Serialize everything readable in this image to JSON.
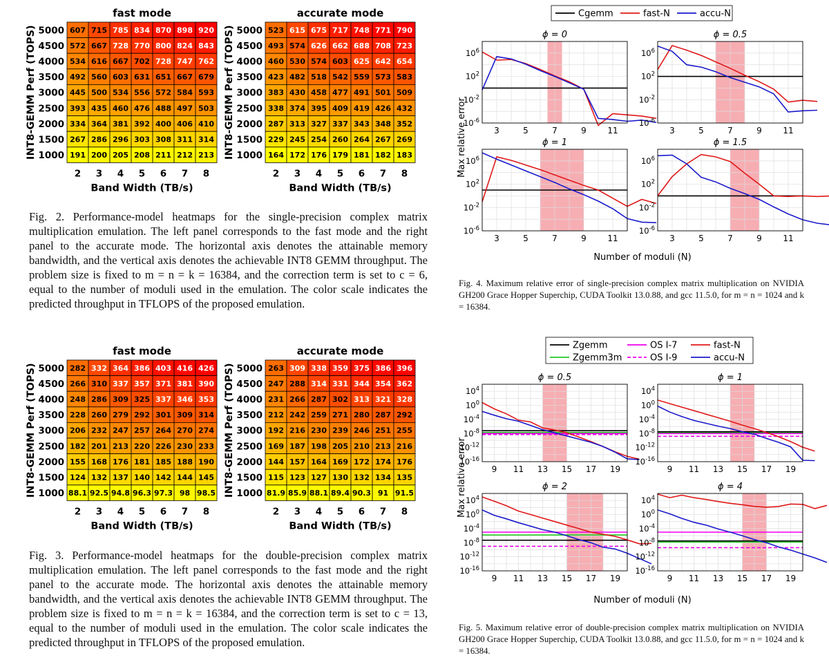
{
  "heatmaps": {
    "x_ticks": [
      "2",
      "3",
      "4",
      "5",
      "6",
      "7",
      "8"
    ],
    "y_ticks": [
      "5000",
      "4500",
      "4000",
      "3500",
      "3000",
      "2500",
      "2000",
      "1500",
      "1000"
    ],
    "xlabel": "Band Width (TB/s)",
    "ylabel": "INT8-GEMM Perf (TOPS)"
  },
  "chart_data": [
    {
      "type": "heatmap",
      "title": "fast mode",
      "x": [
        "2",
        "3",
        "4",
        "5",
        "6",
        "7",
        "8"
      ],
      "y": [
        "5000",
        "4500",
        "4000",
        "3500",
        "3000",
        "2500",
        "2000",
        "1500",
        "1000"
      ],
      "values": [
        [
          "607",
          "715",
          "785",
          "834",
          "870",
          "898",
          "920"
        ],
        [
          "572",
          "667",
          "728",
          "770",
          "800",
          "824",
          "843"
        ],
        [
          "534",
          "616",
          "667",
          "702",
          "728",
          "747",
          "762"
        ],
        [
          "492",
          "560",
          "603",
          "631",
          "651",
          "667",
          "679"
        ],
        [
          "445",
          "500",
          "534",
          "556",
          "572",
          "584",
          "593"
        ],
        [
          "393",
          "435",
          "460",
          "476",
          "488",
          "497",
          "503"
        ],
        [
          "334",
          "364",
          "381",
          "392",
          "400",
          "406",
          "410"
        ],
        [
          "267",
          "286",
          "296",
          "303",
          "308",
          "311",
          "314"
        ],
        [
          "191",
          "200",
          "205",
          "208",
          "211",
          "212",
          "213"
        ]
      ],
      "min": 191,
      "max": 920
    },
    {
      "type": "heatmap",
      "title": "accurate mode",
      "x": [
        "2",
        "3",
        "4",
        "5",
        "6",
        "7",
        "8"
      ],
      "y": [
        "5000",
        "4500",
        "4000",
        "3500",
        "3000",
        "2500",
        "2000",
        "1500",
        "1000"
      ],
      "values": [
        [
          "523",
          "615",
          "675",
          "717",
          "748",
          "771",
          "790"
        ],
        [
          "493",
          "574",
          "626",
          "662",
          "688",
          "708",
          "723"
        ],
        [
          "460",
          "530",
          "574",
          "603",
          "625",
          "642",
          "654"
        ],
        [
          "423",
          "482",
          "518",
          "542",
          "559",
          "573",
          "583"
        ],
        [
          "383",
          "430",
          "458",
          "477",
          "491",
          "501",
          "509"
        ],
        [
          "338",
          "374",
          "395",
          "409",
          "419",
          "426",
          "432"
        ],
        [
          "287",
          "313",
          "327",
          "337",
          "343",
          "348",
          "352"
        ],
        [
          "229",
          "245",
          "254",
          "260",
          "264",
          "267",
          "269"
        ],
        [
          "164",
          "172",
          "176",
          "179",
          "181",
          "182",
          "183"
        ]
      ],
      "min": 164,
      "max": 790
    },
    {
      "type": "heatmap",
      "title": "fast mode",
      "x": [
        "2",
        "3",
        "4",
        "5",
        "6",
        "7",
        "8"
      ],
      "y": [
        "5000",
        "4500",
        "4000",
        "3500",
        "3000",
        "2500",
        "2000",
        "1500",
        "1000"
      ],
      "values": [
        [
          "282",
          "332",
          "364",
          "386",
          "403",
          "416",
          "426"
        ],
        [
          "266",
          "310",
          "337",
          "357",
          "371",
          "381",
          "390"
        ],
        [
          "248",
          "286",
          "309",
          "325",
          "337",
          "346",
          "353"
        ],
        [
          "228",
          "260",
          "279",
          "292",
          "301",
          "309",
          "314"
        ],
        [
          "206",
          "232",
          "247",
          "257",
          "264",
          "270",
          "274"
        ],
        [
          "182",
          "201",
          "213",
          "220",
          "226",
          "230",
          "233"
        ],
        [
          "155",
          "168",
          "176",
          "181",
          "185",
          "188",
          "190"
        ],
        [
          "124",
          "132",
          "137",
          "140",
          "142",
          "144",
          "145"
        ],
        [
          "88.1",
          "92.5",
          "94.8",
          "96.3",
          "97.3",
          "98",
          "98.5"
        ]
      ],
      "min": 88.1,
      "max": 426
    },
    {
      "type": "heatmap",
      "title": "accurate mode",
      "x": [
        "2",
        "3",
        "4",
        "5",
        "6",
        "7",
        "8"
      ],
      "y": [
        "5000",
        "4500",
        "4000",
        "3500",
        "3000",
        "2500",
        "2000",
        "1500",
        "1000"
      ],
      "values": [
        [
          "263",
          "309",
          "338",
          "359",
          "375",
          "386",
          "396"
        ],
        [
          "247",
          "288",
          "314",
          "331",
          "344",
          "354",
          "362"
        ],
        [
          "231",
          "266",
          "287",
          "302",
          "313",
          "321",
          "328"
        ],
        [
          "212",
          "242",
          "259",
          "271",
          "280",
          "287",
          "292"
        ],
        [
          "192",
          "216",
          "230",
          "239",
          "246",
          "251",
          "255"
        ],
        [
          "169",
          "187",
          "198",
          "205",
          "210",
          "213",
          "216"
        ],
        [
          "144",
          "157",
          "164",
          "169",
          "172",
          "174",
          "176"
        ],
        [
          "115",
          "123",
          "127",
          "130",
          "132",
          "134",
          "135"
        ],
        [
          "81.9",
          "85.9",
          "88.1",
          "89.4",
          "90.3",
          "91",
          "91.5"
        ]
      ],
      "min": 81.9,
      "max": 396
    },
    {
      "type": "line",
      "figure": "Fig. 4",
      "xlabel": "Number of moduli (N)",
      "ylabel": "Max relative error",
      "x_ticks": [
        "3",
        "5",
        "7",
        "9",
        "11"
      ],
      "y_ticks": [
        "10^6",
        "10^2",
        "10^-2",
        "10^-6"
      ],
      "legend": [
        "Cgemm",
        "fast-N",
        "accu-N"
      ],
      "panels": [
        {
          "title": "ϕ = 0",
          "shaded_range": [
            6.5,
            7.5
          ],
          "series": [
            {
              "name": "Cgemm",
              "log10_y": [
                0,
                0,
                0,
                0,
                0,
                0,
                0,
                0,
                0,
                0,
                0
              ]
            },
            {
              "name": "fast-N",
              "log10_y": [
                6.2,
                4.8,
                4.9,
                4.2,
                3.2,
                2.1,
                1.1,
                -0.2,
                -6.4,
                -4.4,
                -4.6,
                -4.8,
                -5.2
              ]
            },
            {
              "name": "accu-N",
              "log10_y": [
                -0.3,
                5.4,
                5.0,
                4.1,
                3.0,
                2.0,
                0.9,
                -0.2,
                -5.2,
                -5.4,
                -5.7,
                -5.5,
                -5.9
              ]
            }
          ]
        },
        {
          "title": "ϕ = 0.5",
          "shaded_range": [
            6,
            8
          ],
          "series": [
            {
              "name": "Cgemm",
              "log10_y": [
                2,
                2,
                2,
                2,
                2,
                2,
                2,
                2,
                2,
                2,
                2
              ]
            },
            {
              "name": "fast-N",
              "log10_y": [
                3.2,
                7.3,
                6.5,
                5.6,
                4.5,
                3.4,
                2.2,
                1.1,
                -0.2,
                -2.4,
                -2.1,
                -2.3
              ]
            },
            {
              "name": "accu-N",
              "log10_y": [
                7.2,
                6.3,
                4.0,
                3.6,
                2.8,
                1.8,
                1.0,
                0.2,
                -1.0,
                -4.1,
                -3.9,
                -3.8
              ]
            }
          ]
        },
        {
          "title": "ϕ = 1",
          "shaded_range": [
            6,
            9
          ],
          "series": [
            {
              "name": "Cgemm",
              "log10_y": [
                1,
                1,
                1,
                1,
                1,
                1,
                1,
                1,
                1,
                1
              ]
            },
            {
              "name": "fast-N",
              "log10_y": [
                -1.0,
                6.7,
                6.1,
                5.3,
                4.5,
                3.6,
                2.7,
                1.8,
                1.0,
                -0.4,
                -1.8,
                -0.6,
                -1.3
              ]
            },
            {
              "name": "accu-N",
              "log10_y": [
                7.4,
                6.3,
                5.3,
                4.3,
                3.3,
                2.3,
                1.2,
                0.2,
                -0.9,
                -2.2,
                -3.9,
                -4.5,
                -4.6
              ]
            }
          ]
        },
        {
          "title": "ϕ = 1.5",
          "shaded_range": [
            7,
            9
          ],
          "series": [
            {
              "name": "Cgemm",
              "log10_y": [
                0,
                0,
                0,
                0,
                0,
                0,
                0,
                0,
                0,
                0
              ]
            },
            {
              "name": "fast-N",
              "log10_y": [
                0,
                3.3,
                5.5,
                7.1,
                6.7,
                5.9,
                3.9,
                2.0,
                0,
                -0.1,
                0,
                -0.1,
                0
              ]
            },
            {
              "name": "accu-N",
              "log10_y": [
                6.9,
                7.0,
                5.5,
                3.2,
                2.4,
                1.3,
                0.4,
                -0.6,
                -1.9,
                -3.1,
                -4.1,
                -4.7,
                -5.0
              ]
            }
          ]
        }
      ]
    },
    {
      "type": "line",
      "figure": "Fig. 5",
      "xlabel": "Number of moduli (N)",
      "ylabel": "Max relative error",
      "x_ticks": [
        "9",
        "11",
        "13",
        "15",
        "17",
        "19"
      ],
      "y_ticks": [
        "10^4",
        "10^0",
        "10^-4",
        "10^-8",
        "10^-12",
        "10^-16"
      ],
      "legend": [
        "Zgemm",
        "Zgemm3m",
        "OS I-7",
        "OS I-9",
        "fast-N",
        "accu-N"
      ],
      "panels": [
        {
          "title": "ϕ = 0.5",
          "shaded_range": [
            13,
            15
          ]
        },
        {
          "title": "ϕ = 1",
          "shaded_range": [
            14,
            16
          ]
        },
        {
          "title": "ϕ = 2",
          "shaded_range": [
            15,
            18
          ]
        },
        {
          "title": "ϕ = 4",
          "shaded_range": [
            15,
            17
          ]
        }
      ]
    }
  ],
  "captions": {
    "fig2": "Fig. 2.  Performance-model heatmaps for the single-precision complex matrix multiplication emulation. The left panel corresponds to the fast mode and the right panel to the accurate mode. The horizontal axis denotes the attainable memory bandwidth, and the vertical axis denotes the achievable INT8 GEMM throughput. The problem size is fixed to m = n = k = 16384, and the correction term is set to c = 6, equal to the number of moduli used in the emulation. The color scale indicates the predicted throughput in TFLOPS of the proposed emulation.",
    "fig3": "Fig. 3.  Performance-model heatmaps for the double-precision complex matrix multiplication emulation. The left panel corresponds to the fast mode and the right panel to the accurate mode. The horizontal axis denotes the attainable memory bandwidth, and the vertical axis denotes the achievable INT8 GEMM throughput. The problem size is fixed to m = n = k = 16384, and the correction term is set to c = 13, equal to the number of moduli used in the emulation. The color scale indicates the predicted throughput in TFLOPS of the proposed emulation.",
    "fig4": "Fig. 4.  Maximum relative error of single-precision complex matrix multiplication on NVIDIA GH200 Grace Hopper Superchip, CUDA Toolkit 13.0.88, and gcc 11.5.0, for m = n = 1024 and k = 16384.",
    "fig5": "Fig. 5.  Maximum relative error of double-precision complex matrix multiplication on NVIDIA GH200 Grace Hopper Superchip, CUDA Toolkit 13.0.88, and gcc 11.5.0, for m = n = 1024 and k = 16384."
  },
  "colors": {
    "black": "#000000",
    "red": "#e01818",
    "blue": "#1a1acc",
    "green": "#22cc22",
    "magenta": "#ee00ee",
    "shade": "#f4a0a6"
  }
}
